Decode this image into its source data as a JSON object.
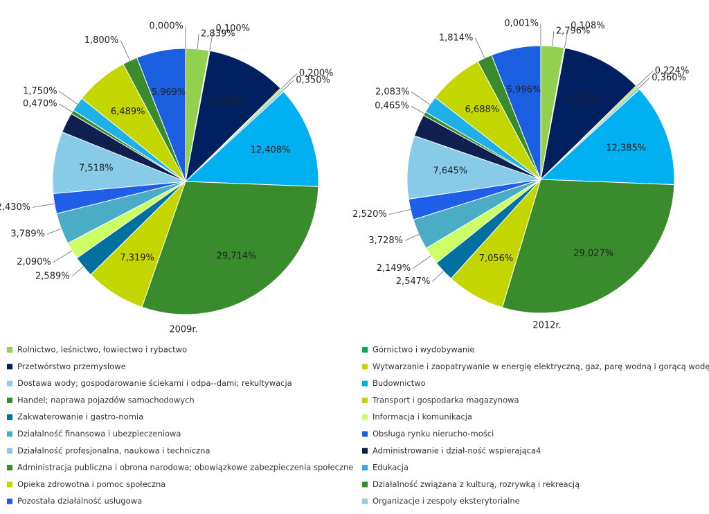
{
  "chart_data": {
    "type": "pie",
    "categories": [
      "Rolnictwo, leśnictwo, łowiectwo i rybactwo",
      "Górnictwo i wydobywanie",
      "Przetwórstwo przemysłowe",
      "Wytwarzanie i zaopatrywanie w energię elektryczną, gaz, parę wodną i gorącą wodę",
      "Dostawa wody; gospodarowanie ściekami i odpa--dami; rekultywacja",
      "Budownictwo",
      "Handel; naprawa pojazdów samochodowych",
      "Transport i gospodarka magazynowa",
      "Zakwaterowanie i gastro-nomia",
      "Informacja i komunikacja",
      "Działalność finansowa i ubezpieczeniowa",
      "Obsługa rynku nierucho-mości",
      "Działalność profesjonalna, naukowa i techniczna",
      "Administrowanie i dział-ność wspierająca4",
      "Administracja publiczna i obrona narodowa; obowiązkowe zabezpieczenia społeczne",
      "Edukacja",
      "Opieka zdrowotna i pomoc społeczna",
      "Działalność związana z kulturą, rozrywką i rekreacją",
      "Pozostała działalność usługowa",
      "Organizacje i zespoły eksterytorialne"
    ],
    "colors": [
      "#92d050",
      "#00b050",
      "#002060",
      "#c8d400",
      "#8ecfe8",
      "#00b0f0",
      "#3a8a2e",
      "#c4d600",
      "#0070a0",
      "#ccff66",
      "#4bacc6",
      "#1f5fe8",
      "#87cbe8",
      "#0f2050",
      "#3a8a2e",
      "#1fb0e8",
      "#c4d600",
      "#3a8a2e",
      "#1a5fe0",
      "#92cddc"
    ],
    "series": [
      {
        "name": "2009r.",
        "values": [
          2.839,
          0.1,
          9.718,
          0.2,
          0.35,
          12.408,
          29.714,
          7.319,
          2.589,
          2.09,
          3.789,
          2.43,
          7.518,
          2.458,
          0.47,
          1.75,
          6.489,
          1.8,
          5.969,
          0.0
        ],
        "value_labels": [
          "2,839%",
          "0,100%",
          "9,718%",
          "0,200%",
          "0,350%",
          "12,408%",
          "29,714%",
          "7,319%",
          "2,589%",
          "2,090%",
          "3,789%",
          "2,430%",
          "7,518%",
          null,
          "0,470%",
          "1,750%",
          "6,489%",
          "1,800%",
          "5,969%",
          "0,000%"
        ]
      },
      {
        "name": "2012r.",
        "values": [
          2.796,
          0.108,
          9.751,
          0.224,
          0.36,
          12.385,
          29.027,
          7.056,
          2.547,
          2.149,
          3.728,
          2.52,
          7.645,
          2.657,
          0.465,
          2.083,
          6.688,
          1.814,
          5.996,
          0.001
        ],
        "value_labels": [
          "2,796%",
          "0,108%",
          "9,751%",
          "0,224%",
          "0,360%",
          "12,385%",
          "29,027%",
          "7,056%",
          "2,547%",
          "2,149%",
          "3,728%",
          "2,520%",
          "7,645%",
          null,
          "0,465%",
          "2,083%",
          "6,688%",
          "1,814%",
          "5,996%",
          "0,001%"
        ]
      }
    ]
  }
}
